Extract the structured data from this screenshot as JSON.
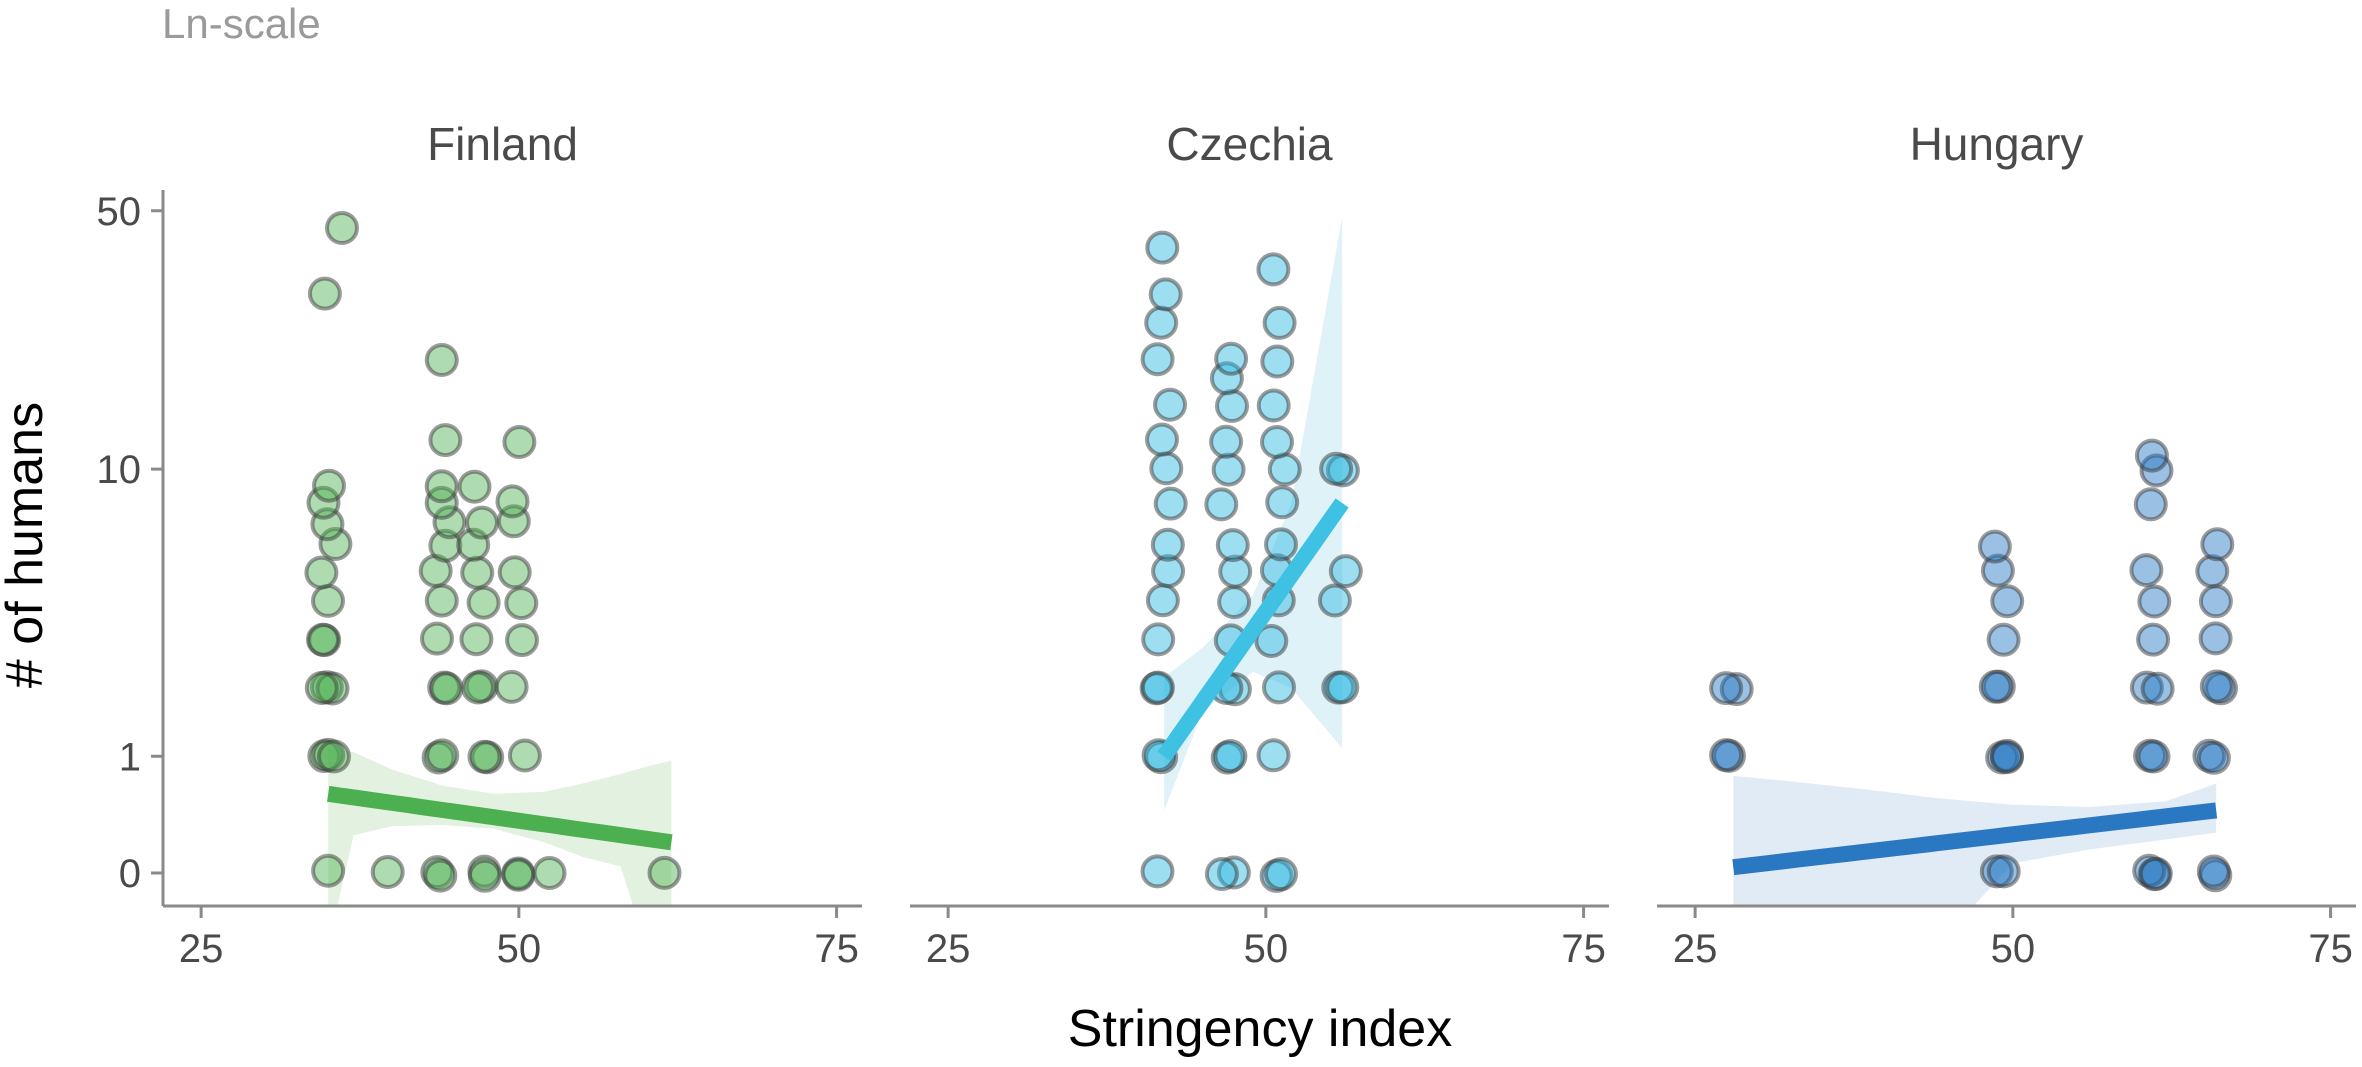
{
  "chart_data": {
    "type": "scatter",
    "caption": "Ln-scale",
    "xlabel": "Stringency index",
    "ylabel": "# of humans",
    "xlim": [
      22,
      77
    ],
    "x_ticks": [
      25,
      50,
      75
    ],
    "y_scale": "ln(1+y)",
    "y_ticks": [
      0,
      1,
      10,
      50
    ],
    "y_tick_labels": [
      "0",
      "1",
      "10",
      "50"
    ],
    "grid": false,
    "legend": "none",
    "facets": [
      {
        "title": "Finland",
        "color": "#4caf50",
        "line_color": "#4caf50",
        "band_color": "#e3f2e0",
        "points": [
          [
            35,
            0
          ],
          [
            35,
            1
          ],
          [
            35,
            1
          ],
          [
            35,
            1
          ],
          [
            35,
            2
          ],
          [
            35,
            2
          ],
          [
            35,
            2
          ],
          [
            35,
            3
          ],
          [
            35,
            3
          ],
          [
            35,
            4
          ],
          [
            35,
            5
          ],
          [
            35,
            6
          ],
          [
            35,
            7
          ],
          [
            35,
            8
          ],
          [
            35,
            9
          ],
          [
            35,
            30
          ],
          [
            35.5,
            45
          ],
          [
            40,
            0
          ],
          [
            44,
            0
          ],
          [
            44,
            0
          ],
          [
            44,
            1
          ],
          [
            44,
            1
          ],
          [
            44,
            2
          ],
          [
            44,
            2
          ],
          [
            44,
            3
          ],
          [
            44,
            4
          ],
          [
            44,
            5
          ],
          [
            44,
            6
          ],
          [
            44,
            7
          ],
          [
            44,
            8
          ],
          [
            44,
            9
          ],
          [
            44,
            20
          ],
          [
            44.5,
            12
          ],
          [
            47,
            0
          ],
          [
            47,
            0
          ],
          [
            47,
            1
          ],
          [
            47,
            1
          ],
          [
            47,
            2
          ],
          [
            47,
            2
          ],
          [
            47,
            3
          ],
          [
            47,
            4
          ],
          [
            47,
            5
          ],
          [
            47,
            6
          ],
          [
            47,
            7
          ],
          [
            47,
            9
          ],
          [
            50,
            0
          ],
          [
            50,
            0
          ],
          [
            50,
            1
          ],
          [
            50,
            2
          ],
          [
            50,
            3
          ],
          [
            50,
            4
          ],
          [
            50,
            5
          ],
          [
            50,
            7
          ],
          [
            50,
            8
          ],
          [
            50,
            12
          ],
          [
            52,
            0
          ],
          [
            62,
            0
          ]
        ],
        "fit": {
          "x": [
            35,
            62
          ],
          "y": [
            0.6,
            0.2
          ]
        },
        "band": {
          "x": [
            35,
            37,
            40,
            44,
            48,
            52,
            55,
            58,
            60,
            62
          ],
          "lower": [
            0.0,
            0.25,
            0.32,
            0.33,
            0.3,
            0.2,
            0.1,
            0.04,
            0.0,
            0.0
          ],
          "upper": [
            1.1,
            1.05,
            0.85,
            0.68,
            0.6,
            0.62,
            0.7,
            0.8,
            0.88,
            0.95
          ]
        }
      },
      {
        "title": "Czechia",
        "color": "#29b6e0",
        "line_color": "#3ec1e3",
        "band_color": "#dff2f8",
        "points": [
          [
            42,
            0
          ],
          [
            42,
            1
          ],
          [
            42,
            1
          ],
          [
            42,
            2
          ],
          [
            42,
            2
          ],
          [
            42,
            3
          ],
          [
            42,
            4
          ],
          [
            42,
            5
          ],
          [
            42,
            6
          ],
          [
            42,
            8
          ],
          [
            42,
            10
          ],
          [
            42,
            12
          ],
          [
            42,
            15
          ],
          [
            42,
            20
          ],
          [
            42,
            25
          ],
          [
            42,
            30
          ],
          [
            42,
            40
          ],
          [
            47,
            0
          ],
          [
            47,
            0
          ],
          [
            47,
            1
          ],
          [
            47,
            1
          ],
          [
            47,
            2
          ],
          [
            47,
            2
          ],
          [
            47,
            3
          ],
          [
            47,
            4
          ],
          [
            47,
            5
          ],
          [
            47,
            6
          ],
          [
            47,
            8
          ],
          [
            47,
            10
          ],
          [
            47,
            12
          ],
          [
            47,
            15
          ],
          [
            47,
            18
          ],
          [
            47,
            20
          ],
          [
            51,
            0
          ],
          [
            51,
            0
          ],
          [
            51,
            1
          ],
          [
            51,
            2
          ],
          [
            51,
            3
          ],
          [
            51,
            4
          ],
          [
            51,
            5
          ],
          [
            51,
            6
          ],
          [
            51,
            8
          ],
          [
            51,
            10
          ],
          [
            51,
            12
          ],
          [
            51,
            15
          ],
          [
            51,
            20
          ],
          [
            51,
            25
          ],
          [
            51,
            35
          ],
          [
            56,
            2
          ],
          [
            56,
            2
          ],
          [
            56,
            4
          ],
          [
            56,
            5
          ],
          [
            56,
            10
          ],
          [
            56,
            10
          ]
        ],
        "fit": {
          "x": [
            42,
            56
          ],
          "y": [
            1.0,
            8.0
          ]
        },
        "band": {
          "x": [
            42,
            45,
            49,
            52,
            56
          ],
          "lower": [
            0.45,
            1.6,
            2.3,
            2.0,
            1.1
          ],
          "upper": [
            2.2,
            2.8,
            4.2,
            8.0,
            48.0
          ]
        }
      },
      {
        "title": "Hungary",
        "color": "#1f73c0",
        "line_color": "#2b78c2",
        "band_color": "#e0ebf6",
        "points": [
          [
            28,
            1
          ],
          [
            28,
            1
          ],
          [
            28,
            2
          ],
          [
            28,
            2
          ],
          [
            49,
            0
          ],
          [
            49,
            0
          ],
          [
            49,
            1
          ],
          [
            49,
            1
          ],
          [
            49,
            1
          ],
          [
            49,
            2
          ],
          [
            49,
            2
          ],
          [
            49,
            3
          ],
          [
            49,
            4
          ],
          [
            49,
            5
          ],
          [
            49,
            6
          ],
          [
            61,
            0
          ],
          [
            61,
            0
          ],
          [
            61,
            0
          ],
          [
            61,
            1
          ],
          [
            61,
            1
          ],
          [
            61,
            2
          ],
          [
            61,
            2
          ],
          [
            61,
            3
          ],
          [
            61,
            4
          ],
          [
            61,
            5
          ],
          [
            61,
            8
          ],
          [
            61,
            10
          ],
          [
            61,
            11
          ],
          [
            66,
            0
          ],
          [
            66,
            0
          ],
          [
            66,
            1
          ],
          [
            66,
            1
          ],
          [
            66,
            2
          ],
          [
            66,
            2
          ],
          [
            66,
            3
          ],
          [
            66,
            4
          ],
          [
            66,
            5
          ],
          [
            66,
            6
          ]
        ],
        "fit": {
          "x": [
            28,
            66
          ],
          "y": [
            0.035,
            0.45
          ]
        },
        "band": {
          "x": [
            28,
            32,
            38,
            44,
            50,
            56,
            62,
            66
          ],
          "lower": [
            0.0,
            0.0,
            0.0,
            0.0,
            0.06,
            0.15,
            0.22,
            0.27
          ],
          "upper": [
            0.78,
            0.73,
            0.65,
            0.56,
            0.5,
            0.48,
            0.53,
            0.7
          ]
        }
      }
    ]
  }
}
